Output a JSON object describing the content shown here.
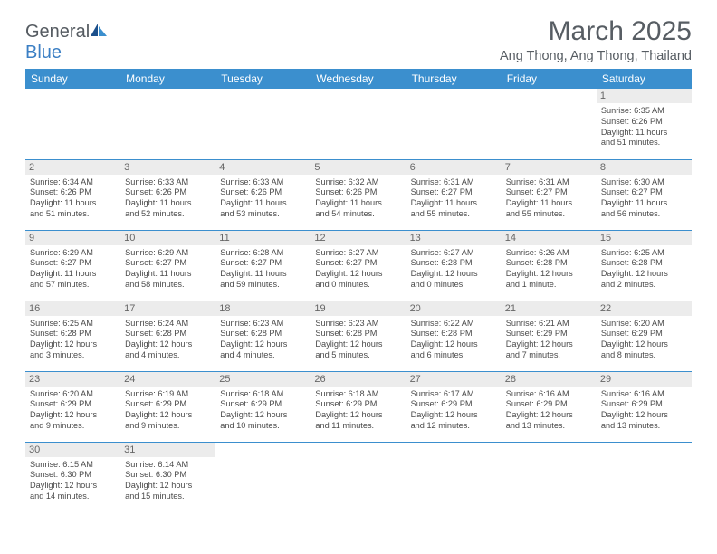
{
  "logo": {
    "word1": "General",
    "word2": "Blue"
  },
  "title": "March 2025",
  "subtitle": "Ang Thong, Ang Thong, Thailand",
  "colors": {
    "header_bg": "#3b8fce",
    "header_fg": "#ffffff",
    "daynum_bg": "#ececec",
    "border": "#3b8fce",
    "text": "#4a4a4a",
    "title": "#575d63",
    "logo_gray": "#555b61",
    "logo_blue": "#3b7fc4",
    "page_bg": "#ffffff"
  },
  "dayNames": [
    "Sunday",
    "Monday",
    "Tuesday",
    "Wednesday",
    "Thursday",
    "Friday",
    "Saturday"
  ],
  "weeks": [
    [
      null,
      null,
      null,
      null,
      null,
      null,
      {
        "n": "1",
        "sr": "Sunrise: 6:35 AM",
        "ss": "Sunset: 6:26 PM",
        "d1": "Daylight: 11 hours",
        "d2": "and 51 minutes."
      }
    ],
    [
      {
        "n": "2",
        "sr": "Sunrise: 6:34 AM",
        "ss": "Sunset: 6:26 PM",
        "d1": "Daylight: 11 hours",
        "d2": "and 51 minutes."
      },
      {
        "n": "3",
        "sr": "Sunrise: 6:33 AM",
        "ss": "Sunset: 6:26 PM",
        "d1": "Daylight: 11 hours",
        "d2": "and 52 minutes."
      },
      {
        "n": "4",
        "sr": "Sunrise: 6:33 AM",
        "ss": "Sunset: 6:26 PM",
        "d1": "Daylight: 11 hours",
        "d2": "and 53 minutes."
      },
      {
        "n": "5",
        "sr": "Sunrise: 6:32 AM",
        "ss": "Sunset: 6:26 PM",
        "d1": "Daylight: 11 hours",
        "d2": "and 54 minutes."
      },
      {
        "n": "6",
        "sr": "Sunrise: 6:31 AM",
        "ss": "Sunset: 6:27 PM",
        "d1": "Daylight: 11 hours",
        "d2": "and 55 minutes."
      },
      {
        "n": "7",
        "sr": "Sunrise: 6:31 AM",
        "ss": "Sunset: 6:27 PM",
        "d1": "Daylight: 11 hours",
        "d2": "and 55 minutes."
      },
      {
        "n": "8",
        "sr": "Sunrise: 6:30 AM",
        "ss": "Sunset: 6:27 PM",
        "d1": "Daylight: 11 hours",
        "d2": "and 56 minutes."
      }
    ],
    [
      {
        "n": "9",
        "sr": "Sunrise: 6:29 AM",
        "ss": "Sunset: 6:27 PM",
        "d1": "Daylight: 11 hours",
        "d2": "and 57 minutes."
      },
      {
        "n": "10",
        "sr": "Sunrise: 6:29 AM",
        "ss": "Sunset: 6:27 PM",
        "d1": "Daylight: 11 hours",
        "d2": "and 58 minutes."
      },
      {
        "n": "11",
        "sr": "Sunrise: 6:28 AM",
        "ss": "Sunset: 6:27 PM",
        "d1": "Daylight: 11 hours",
        "d2": "and 59 minutes."
      },
      {
        "n": "12",
        "sr": "Sunrise: 6:27 AM",
        "ss": "Sunset: 6:27 PM",
        "d1": "Daylight: 12 hours",
        "d2": "and 0 minutes."
      },
      {
        "n": "13",
        "sr": "Sunrise: 6:27 AM",
        "ss": "Sunset: 6:28 PM",
        "d1": "Daylight: 12 hours",
        "d2": "and 0 minutes."
      },
      {
        "n": "14",
        "sr": "Sunrise: 6:26 AM",
        "ss": "Sunset: 6:28 PM",
        "d1": "Daylight: 12 hours",
        "d2": "and 1 minute."
      },
      {
        "n": "15",
        "sr": "Sunrise: 6:25 AM",
        "ss": "Sunset: 6:28 PM",
        "d1": "Daylight: 12 hours",
        "d2": "and 2 minutes."
      }
    ],
    [
      {
        "n": "16",
        "sr": "Sunrise: 6:25 AM",
        "ss": "Sunset: 6:28 PM",
        "d1": "Daylight: 12 hours",
        "d2": "and 3 minutes."
      },
      {
        "n": "17",
        "sr": "Sunrise: 6:24 AM",
        "ss": "Sunset: 6:28 PM",
        "d1": "Daylight: 12 hours",
        "d2": "and 4 minutes."
      },
      {
        "n": "18",
        "sr": "Sunrise: 6:23 AM",
        "ss": "Sunset: 6:28 PM",
        "d1": "Daylight: 12 hours",
        "d2": "and 4 minutes."
      },
      {
        "n": "19",
        "sr": "Sunrise: 6:23 AM",
        "ss": "Sunset: 6:28 PM",
        "d1": "Daylight: 12 hours",
        "d2": "and 5 minutes."
      },
      {
        "n": "20",
        "sr": "Sunrise: 6:22 AM",
        "ss": "Sunset: 6:28 PM",
        "d1": "Daylight: 12 hours",
        "d2": "and 6 minutes."
      },
      {
        "n": "21",
        "sr": "Sunrise: 6:21 AM",
        "ss": "Sunset: 6:29 PM",
        "d1": "Daylight: 12 hours",
        "d2": "and 7 minutes."
      },
      {
        "n": "22",
        "sr": "Sunrise: 6:20 AM",
        "ss": "Sunset: 6:29 PM",
        "d1": "Daylight: 12 hours",
        "d2": "and 8 minutes."
      }
    ],
    [
      {
        "n": "23",
        "sr": "Sunrise: 6:20 AM",
        "ss": "Sunset: 6:29 PM",
        "d1": "Daylight: 12 hours",
        "d2": "and 9 minutes."
      },
      {
        "n": "24",
        "sr": "Sunrise: 6:19 AM",
        "ss": "Sunset: 6:29 PM",
        "d1": "Daylight: 12 hours",
        "d2": "and 9 minutes."
      },
      {
        "n": "25",
        "sr": "Sunrise: 6:18 AM",
        "ss": "Sunset: 6:29 PM",
        "d1": "Daylight: 12 hours",
        "d2": "and 10 minutes."
      },
      {
        "n": "26",
        "sr": "Sunrise: 6:18 AM",
        "ss": "Sunset: 6:29 PM",
        "d1": "Daylight: 12 hours",
        "d2": "and 11 minutes."
      },
      {
        "n": "27",
        "sr": "Sunrise: 6:17 AM",
        "ss": "Sunset: 6:29 PM",
        "d1": "Daylight: 12 hours",
        "d2": "and 12 minutes."
      },
      {
        "n": "28",
        "sr": "Sunrise: 6:16 AM",
        "ss": "Sunset: 6:29 PM",
        "d1": "Daylight: 12 hours",
        "d2": "and 13 minutes."
      },
      {
        "n": "29",
        "sr": "Sunrise: 6:16 AM",
        "ss": "Sunset: 6:29 PM",
        "d1": "Daylight: 12 hours",
        "d2": "and 13 minutes."
      }
    ],
    [
      {
        "n": "30",
        "sr": "Sunrise: 6:15 AM",
        "ss": "Sunset: 6:30 PM",
        "d1": "Daylight: 12 hours",
        "d2": "and 14 minutes."
      },
      {
        "n": "31",
        "sr": "Sunrise: 6:14 AM",
        "ss": "Sunset: 6:30 PM",
        "d1": "Daylight: 12 hours",
        "d2": "and 15 minutes."
      },
      null,
      null,
      null,
      null,
      null
    ]
  ]
}
